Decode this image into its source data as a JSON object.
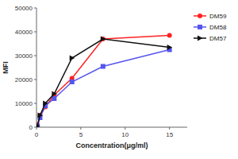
{
  "chart_data": {
    "type": "line",
    "xlabel": "Concentration(μg/ml)",
    "ylabel": "MFI",
    "x": [
      0.1,
      0.4,
      1,
      2,
      4,
      7.5,
      15
    ],
    "series": [
      {
        "name": "DM59",
        "color": "#FF2222",
        "marker": "circle",
        "values": [
          1000,
          5000,
          8500,
          13500,
          20500,
          37000,
          38500
        ]
      },
      {
        "name": "DM58",
        "color": "#5555EE",
        "marker": "square",
        "values": [
          500,
          4000,
          9000,
          12000,
          19000,
          25500,
          32500
        ]
      },
      {
        "name": "DM57",
        "color": "#111111",
        "marker": "triangle-right",
        "values": [
          500,
          5000,
          10000,
          14000,
          29000,
          37000,
          33500
        ]
      }
    ],
    "xlim": [
      0,
      17
    ],
    "ylim": [
      0,
      50000
    ],
    "xticks": [
      0,
      5,
      10,
      15
    ],
    "yticks": [
      0,
      10000,
      20000,
      30000,
      40000,
      50000
    ],
    "grid": false,
    "legend": "right"
  }
}
